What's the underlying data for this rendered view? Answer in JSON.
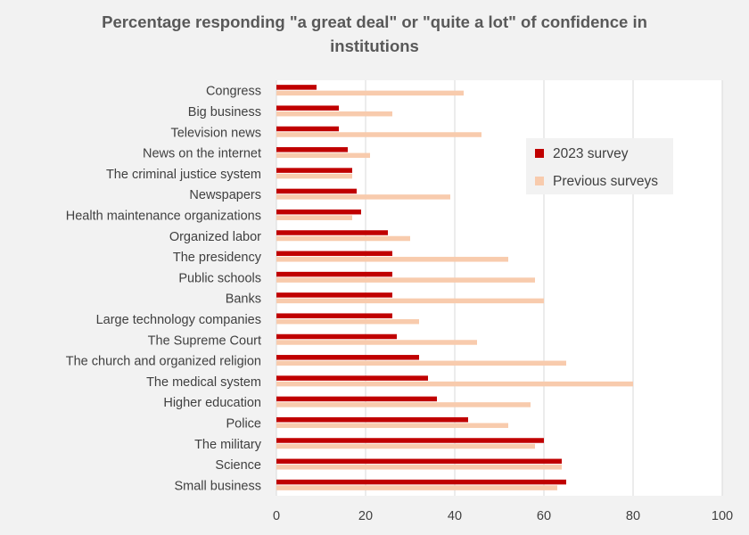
{
  "chart_data": {
    "type": "bar",
    "orientation": "horizontal",
    "title": "Percentage responding \"a great deal\" or \"quite a lot\" of confidence in institutions",
    "title_lines": [
      "Percentage responding \"a great deal\" or \"quite a lot\" of confidence in",
      "institutions"
    ],
    "xlabel": "",
    "ylabel": "",
    "xlim": [
      0,
      100
    ],
    "xticks": [
      0,
      20,
      40,
      60,
      80,
      100
    ],
    "grid": true,
    "legend_position": "right",
    "categories": [
      "Congress",
      "Big business",
      "Television news",
      "News on the internet",
      "The criminal justice system",
      "Newspapers",
      "Health maintenance organizations",
      "Organized labor",
      "The presidency",
      "Public schools",
      "Banks",
      "Large technology companies",
      "The Supreme Court ",
      "The church and organized religion",
      "The medical system",
      "Higher education",
      "Police",
      "The military",
      "Science",
      "Small business"
    ],
    "series": [
      {
        "name": "2023 survey",
        "color": "#c00000",
        "values": [
          9,
          14,
          14,
          16,
          17,
          18,
          19,
          25,
          26,
          26,
          26,
          26,
          27,
          32,
          34,
          36,
          43,
          60,
          64,
          65
        ]
      },
      {
        "name": "Previous surveys",
        "color": "#f8cbad",
        "values": [
          42,
          26,
          46,
          21,
          17,
          39,
          17,
          30,
          52,
          58,
          60,
          32,
          45,
          65,
          80,
          57,
          52,
          58,
          64,
          63
        ]
      }
    ]
  }
}
